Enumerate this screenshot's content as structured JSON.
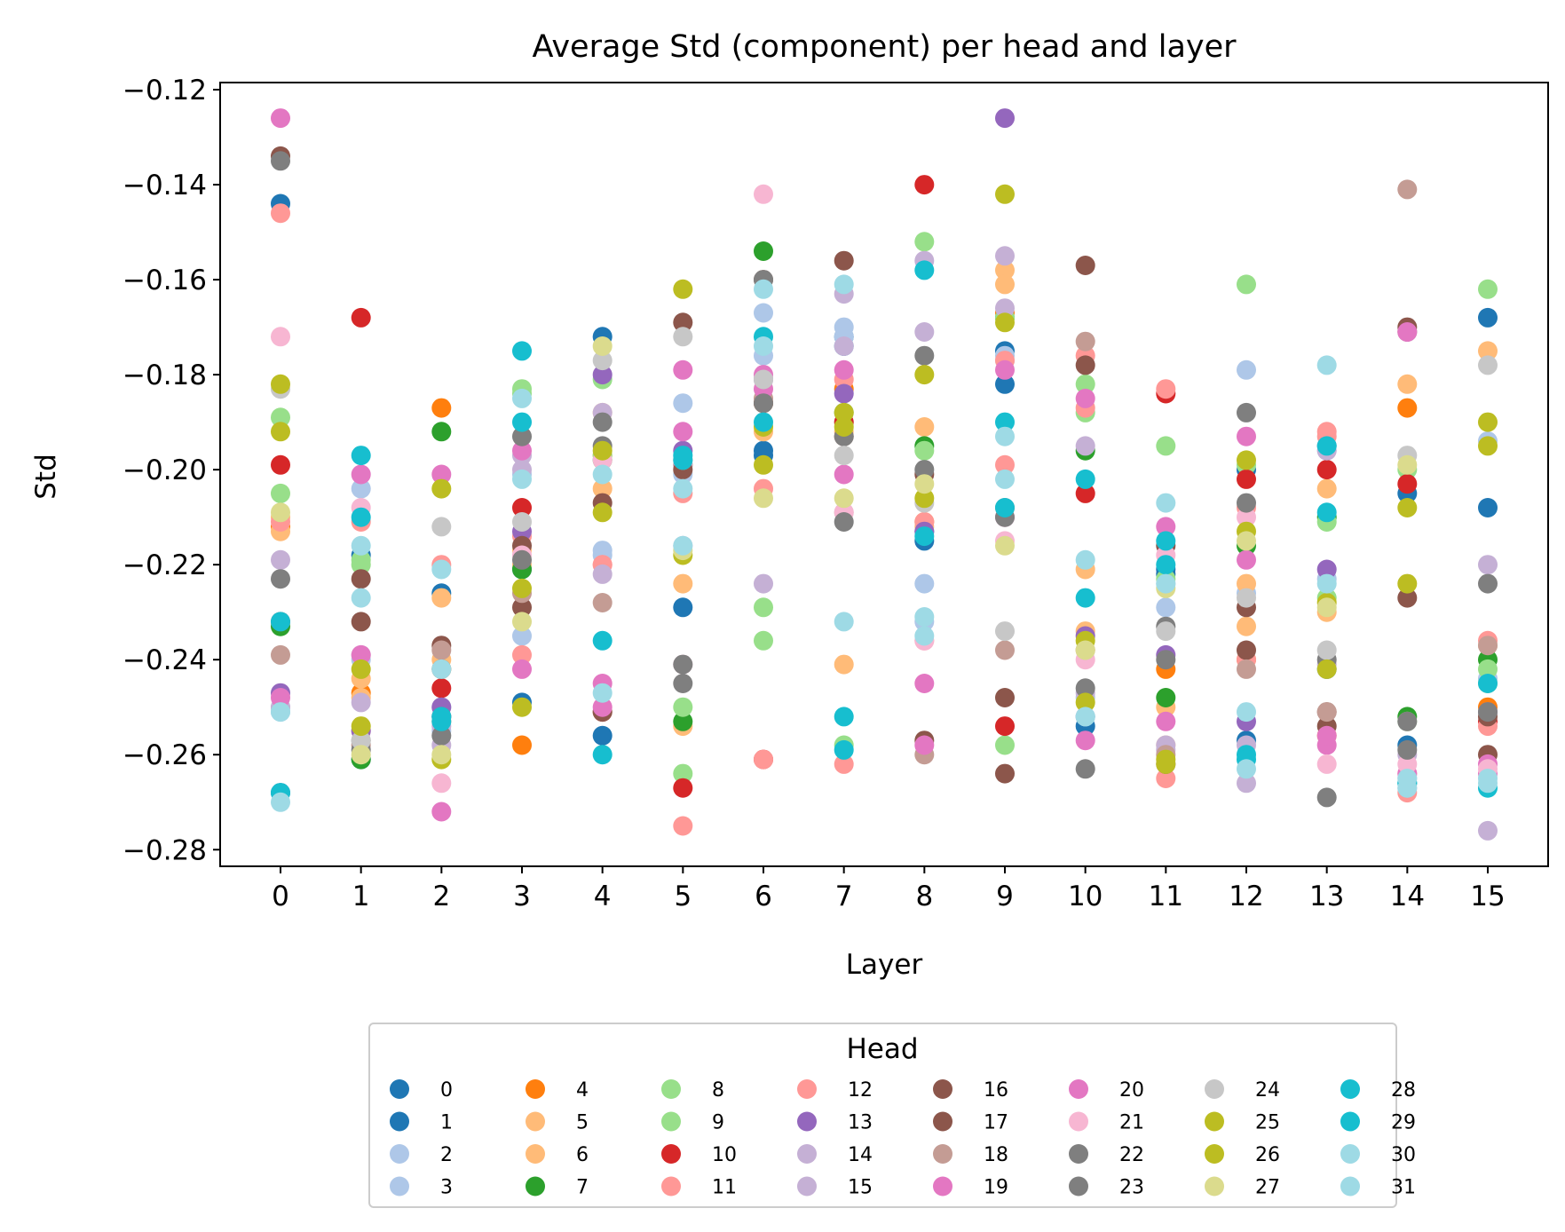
{
  "chart_data": {
    "type": "scatter",
    "title": "Average Std (component) per head and layer",
    "xlabel": "Layer",
    "ylabel": "Std",
    "xlim": [
      -0.75,
      15.75
    ],
    "ylim": [
      -0.2835,
      -0.1185
    ],
    "x_ticks": [
      0,
      1,
      2,
      3,
      4,
      5,
      6,
      7,
      8,
      9,
      10,
      11,
      12,
      13,
      14,
      15
    ],
    "x_tick_labels": [
      "0",
      "1",
      "2",
      "3",
      "4",
      "5",
      "6",
      "7",
      "8",
      "9",
      "10",
      "11",
      "12",
      "13",
      "14",
      "15"
    ],
    "y_ticks": [
      -0.28,
      -0.26,
      -0.24,
      -0.22,
      -0.2,
      -0.18,
      -0.16,
      -0.14,
      -0.12
    ],
    "y_tick_labels": [
      "−0.28",
      "−0.26",
      "−0.24",
      "−0.22",
      "−0.20",
      "−0.18",
      "−0.16",
      "−0.14",
      "−0.12"
    ],
    "grid": false,
    "legend": {
      "title": "Head",
      "placement": "below plot",
      "columns": 8
    },
    "x": [
      0,
      1,
      2,
      3,
      4,
      5,
      6,
      7,
      8,
      9,
      10,
      11,
      12,
      13,
      14,
      15
    ],
    "series": [
      {
        "name": "0",
        "color": "#1f77b4",
        "values": [
          -0.144,
          -0.218,
          -0.226,
          -0.249,
          -0.172,
          -0.229,
          -0.197,
          -0.172,
          -0.215,
          -0.182,
          -0.254,
          -0.222,
          -0.2,
          -0.195,
          -0.205,
          -0.168
        ]
      },
      {
        "name": "1",
        "color": "#1f77b4",
        "values": [
          -0.268,
          -0.261,
          -0.252,
          -0.221,
          -0.256,
          -0.199,
          -0.196,
          -0.174,
          -0.213,
          -0.175,
          -0.252,
          -0.221,
          -0.257,
          -0.242,
          -0.258,
          -0.208
        ]
      },
      {
        "name": "2",
        "color": "#aec7e8",
        "values": [
          -0.251,
          -0.204,
          -0.25,
          -0.235,
          -0.217,
          -0.186,
          -0.167,
          -0.17,
          -0.224,
          -0.177,
          -0.248,
          -0.229,
          -0.179,
          -0.196,
          -0.265,
          -0.194
        ]
      },
      {
        "name": "3",
        "color": "#aec7e8",
        "values": [
          -0.25,
          -0.24,
          -0.255,
          -0.201,
          -0.218,
          -0.201,
          -0.176,
          -0.172,
          -0.232,
          -0.176,
          -0.252,
          -0.224,
          -0.226,
          -0.223,
          -0.266,
          -0.244
        ]
      },
      {
        "name": "4",
        "color": "#ff7f0e",
        "values": [
          -0.212,
          -0.247,
          -0.187,
          -0.258,
          -0.197,
          -0.199,
          -0.186,
          -0.183,
          -0.211,
          -0.167,
          -0.238,
          -0.242,
          -0.24,
          -0.256,
          -0.187,
          -0.25
        ]
      },
      {
        "name": "5",
        "color": "#ffbb78",
        "values": [
          -0.213,
          -0.244,
          -0.227,
          -0.217,
          -0.188,
          -0.224,
          -0.192,
          -0.241,
          -0.191,
          -0.158,
          -0.221,
          -0.25,
          -0.233,
          -0.204,
          -0.182,
          -0.175
        ]
      },
      {
        "name": "6",
        "color": "#ffbb78",
        "values": [
          -0.21,
          -0.248,
          -0.24,
          -0.22,
          -0.204,
          -0.254,
          -0.186,
          -0.192,
          -0.212,
          -0.161,
          -0.234,
          -0.258,
          -0.224,
          -0.23,
          -0.171,
          -0.237
        ]
      },
      {
        "name": "7",
        "color": "#2ca02c",
        "values": [
          -0.233,
          -0.261,
          -0.192,
          -0.221,
          -0.198,
          -0.253,
          -0.154,
          -0.188,
          -0.195,
          -0.168,
          -0.196,
          -0.248,
          -0.216,
          -0.21,
          -0.252,
          -0.24
        ]
      },
      {
        "name": "8",
        "color": "#98df8a",
        "values": [
          -0.205,
          -0.219,
          -0.253,
          -0.183,
          -0.181,
          -0.25,
          -0.229,
          -0.258,
          -0.152,
          -0.258,
          -0.182,
          -0.195,
          -0.161,
          -0.211,
          -0.253,
          -0.162
        ]
      },
      {
        "name": "9",
        "color": "#98df8a",
        "values": [
          -0.189,
          -0.22,
          -0.242,
          -0.184,
          -0.197,
          -0.264,
          -0.236,
          -0.19,
          -0.196,
          -0.168,
          -0.188,
          -0.223,
          -0.199,
          -0.227,
          -0.2,
          -0.242
        ]
      },
      {
        "name": "10",
        "color": "#d62728",
        "values": [
          -0.199,
          -0.168,
          -0.246,
          -0.208,
          -0.251,
          -0.267,
          -0.261,
          -0.19,
          -0.14,
          -0.254,
          -0.205,
          -0.184,
          -0.202,
          -0.2,
          -0.203,
          -0.253
        ]
      },
      {
        "name": "11",
        "color": "#ff9896",
        "values": [
          -0.146,
          -0.211,
          -0.22,
          -0.239,
          -0.22,
          -0.275,
          -0.261,
          -0.262,
          -0.211,
          -0.199,
          -0.187,
          -0.265,
          -0.208,
          -0.193,
          -0.268,
          -0.254
        ]
      },
      {
        "name": "12",
        "color": "#ff9896",
        "values": [
          -0.211,
          -0.255,
          -0.253,
          -0.214,
          -0.22,
          -0.205,
          -0.204,
          -0.181,
          -0.236,
          -0.177,
          -0.176,
          -0.183,
          -0.24,
          -0.192,
          -0.264,
          -0.236
        ]
      },
      {
        "name": "13",
        "color": "#9467bd",
        "values": [
          -0.247,
          -0.255,
          -0.25,
          -0.213,
          -0.18,
          -0.196,
          -0.181,
          -0.184,
          -0.213,
          -0.126,
          -0.235,
          -0.239,
          -0.253,
          -0.221,
          -0.171,
          -0.251
        ]
      },
      {
        "name": "14",
        "color": "#c5b0d5",
        "values": [
          -0.219,
          -0.249,
          -0.254,
          -0.2,
          -0.222,
          -0.199,
          -0.224,
          -0.163,
          -0.156,
          -0.155,
          -0.247,
          -0.258,
          -0.266,
          -0.196,
          -0.267,
          -0.22
        ]
      },
      {
        "name": "15",
        "color": "#c5b0d5",
        "values": [
          -0.25,
          -0.239,
          -0.258,
          -0.197,
          -0.188,
          -0.216,
          -0.181,
          -0.174,
          -0.171,
          -0.166,
          -0.195,
          -0.259,
          -0.258,
          -0.241,
          -0.26,
          -0.276
        ]
      },
      {
        "name": "16",
        "color": "#8c564b",
        "values": [
          -0.232,
          -0.232,
          -0.237,
          -0.216,
          -0.207,
          -0.169,
          -0.16,
          -0.156,
          -0.201,
          -0.248,
          -0.157,
          -0.216,
          -0.238,
          -0.251,
          -0.227,
          -0.26
        ]
      },
      {
        "name": "17",
        "color": "#8c564b",
        "values": [
          -0.134,
          -0.223,
          -0.242,
          -0.229,
          -0.251,
          -0.2,
          -0.186,
          -0.193,
          -0.257,
          -0.264,
          -0.178,
          -0.262,
          -0.229,
          -0.254,
          -0.17,
          -0.252
        ]
      },
      {
        "name": "18",
        "color": "#c49c94",
        "values": [
          -0.239,
          -0.258,
          -0.238,
          -0.226,
          -0.228,
          -0.198,
          -0.185,
          -0.209,
          -0.26,
          -0.238,
          -0.173,
          -0.26,
          -0.242,
          -0.251,
          -0.141,
          -0.237
        ]
      },
      {
        "name": "19",
        "color": "#e377c2",
        "values": [
          -0.248,
          -0.201,
          -0.272,
          -0.196,
          -0.25,
          -0.179,
          -0.18,
          -0.179,
          -0.245,
          -0.179,
          -0.257,
          -0.253,
          -0.193,
          -0.258,
          -0.171,
          -0.264
        ]
      },
      {
        "name": "20",
        "color": "#e377c2",
        "values": [
          -0.126,
          -0.239,
          -0.201,
          -0.242,
          -0.245,
          -0.192,
          -0.183,
          -0.201,
          -0.258,
          -0.21,
          -0.185,
          -0.212,
          -0.219,
          -0.256,
          -0.264,
          -0.262
        ]
      },
      {
        "name": "21",
        "color": "#f7b6d2",
        "values": [
          -0.172,
          -0.208,
          -0.266,
          -0.218,
          -0.198,
          -0.241,
          -0.142,
          -0.209,
          -0.236,
          -0.215,
          -0.24,
          -0.218,
          -0.21,
          -0.262,
          -0.262,
          -0.263
        ]
      },
      {
        "name": "22",
        "color": "#7f7f7f",
        "values": [
          -0.223,
          -0.257,
          -0.256,
          -0.193,
          -0.195,
          -0.245,
          -0.186,
          -0.211,
          -0.176,
          -0.21,
          -0.263,
          -0.233,
          -0.207,
          -0.269,
          -0.253,
          -0.224
        ]
      },
      {
        "name": "23",
        "color": "#7f7f7f",
        "values": [
          -0.135,
          -0.259,
          -0.252,
          -0.219,
          -0.19,
          -0.241,
          -0.16,
          -0.193,
          -0.2,
          -0.208,
          -0.246,
          -0.24,
          -0.188,
          -0.24,
          -0.259,
          -0.251
        ]
      },
      {
        "name": "24",
        "color": "#c7c7c7",
        "values": [
          -0.183,
          -0.257,
          -0.212,
          -0.211,
          -0.177,
          -0.172,
          -0.181,
          -0.197,
          -0.207,
          -0.234,
          -0.238,
          -0.234,
          -0.227,
          -0.238,
          -0.197,
          -0.178
        ]
      },
      {
        "name": "25",
        "color": "#bcbd22",
        "values": [
          -0.182,
          -0.242,
          -0.204,
          -0.225,
          -0.209,
          -0.218,
          -0.199,
          -0.188,
          -0.18,
          -0.142,
          -0.249,
          -0.261,
          -0.198,
          -0.242,
          -0.208,
          -0.19
        ]
      },
      {
        "name": "26",
        "color": "#bcbd22",
        "values": [
          -0.192,
          -0.254,
          -0.261,
          -0.25,
          -0.196,
          -0.162,
          -0.191,
          -0.191,
          -0.206,
          -0.169,
          -0.236,
          -0.262,
          -0.213,
          -0.228,
          -0.224,
          -0.195
        ]
      },
      {
        "name": "27",
        "color": "#dbdb8d",
        "values": [
          -0.209,
          -0.26,
          -0.26,
          -0.232,
          -0.174,
          -0.217,
          -0.206,
          -0.206,
          -0.203,
          -0.216,
          -0.238,
          -0.225,
          -0.215,
          -0.229,
          -0.199,
          -0.245
        ]
      },
      {
        "name": "28",
        "color": "#17becf",
        "values": [
          -0.232,
          -0.197,
          -0.253,
          -0.175,
          -0.236,
          -0.198,
          -0.172,
          -0.252,
          -0.158,
          -0.19,
          -0.227,
          -0.22,
          -0.26,
          -0.195,
          -0.266,
          -0.267
        ]
      },
      {
        "name": "29",
        "color": "#17becf",
        "values": [
          -0.268,
          -0.21,
          -0.252,
          -0.19,
          -0.26,
          -0.197,
          -0.19,
          -0.259,
          -0.214,
          -0.208,
          -0.202,
          -0.215,
          -0.261,
          -0.209,
          -0.266,
          -0.245
        ]
      },
      {
        "name": "30",
        "color": "#9edae5",
        "values": [
          -0.251,
          -0.216,
          -0.221,
          -0.185,
          -0.201,
          -0.216,
          -0.162,
          -0.161,
          -0.231,
          -0.193,
          -0.219,
          -0.207,
          -0.251,
          -0.178,
          -0.265,
          -0.265
        ]
      },
      {
        "name": "31",
        "color": "#9edae5",
        "values": [
          -0.27,
          -0.227,
          -0.242,
          -0.202,
          -0.247,
          -0.204,
          -0.174,
          -0.232,
          -0.235,
          -0.202,
          -0.252,
          -0.224,
          -0.263,
          -0.224,
          -0.267,
          -0.266
        ]
      }
    ]
  }
}
